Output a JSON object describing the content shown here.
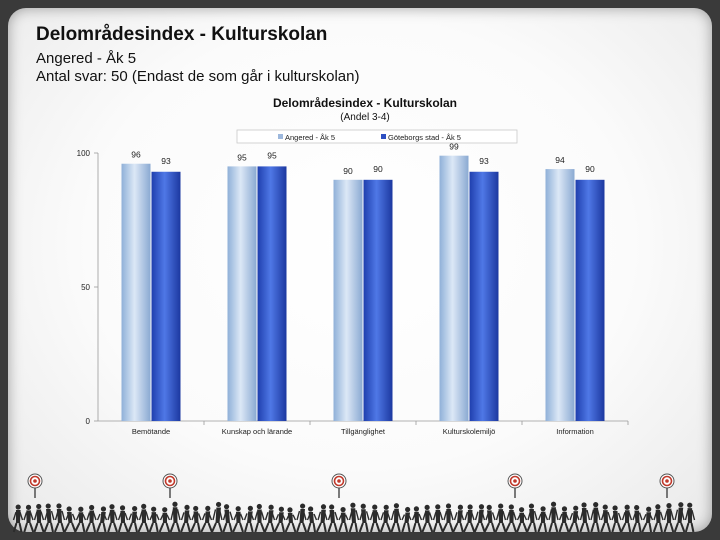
{
  "header": {
    "title": "Delområdesindex - Kulturskolan",
    "subtitle1": "Angered - Åk 5",
    "subtitle2": "Antal svar: 50 (Endast de som går i kulturskolan)"
  },
  "chart_data": {
    "type": "bar",
    "title": "Delområdesindex - Kulturskolan",
    "subtitle": "(Andel 3-4)",
    "categories": [
      "Bemötande",
      "Kunskap och lärande",
      "Tillgänglighet",
      "Kulturskolemiljö",
      "Information"
    ],
    "series": [
      {
        "name": "Angered - Åk 5",
        "values": [
          96,
          95,
          90,
          99,
          94
        ],
        "color": "#a9c4e4"
      },
      {
        "name": "Göteborgs stad - Åk 5",
        "values": [
          93,
          95,
          90,
          93,
          90
        ],
        "color": "#3a5fcd"
      }
    ],
    "ylim": [
      0,
      100
    ],
    "yticks": [
      0,
      50,
      100
    ],
    "legend": "top",
    "grid": false
  },
  "colors": {
    "background": "#ffffff",
    "frame": "#3a3a3a",
    "people": "#2b2b2b",
    "target_accent": "#c0392b"
  }
}
